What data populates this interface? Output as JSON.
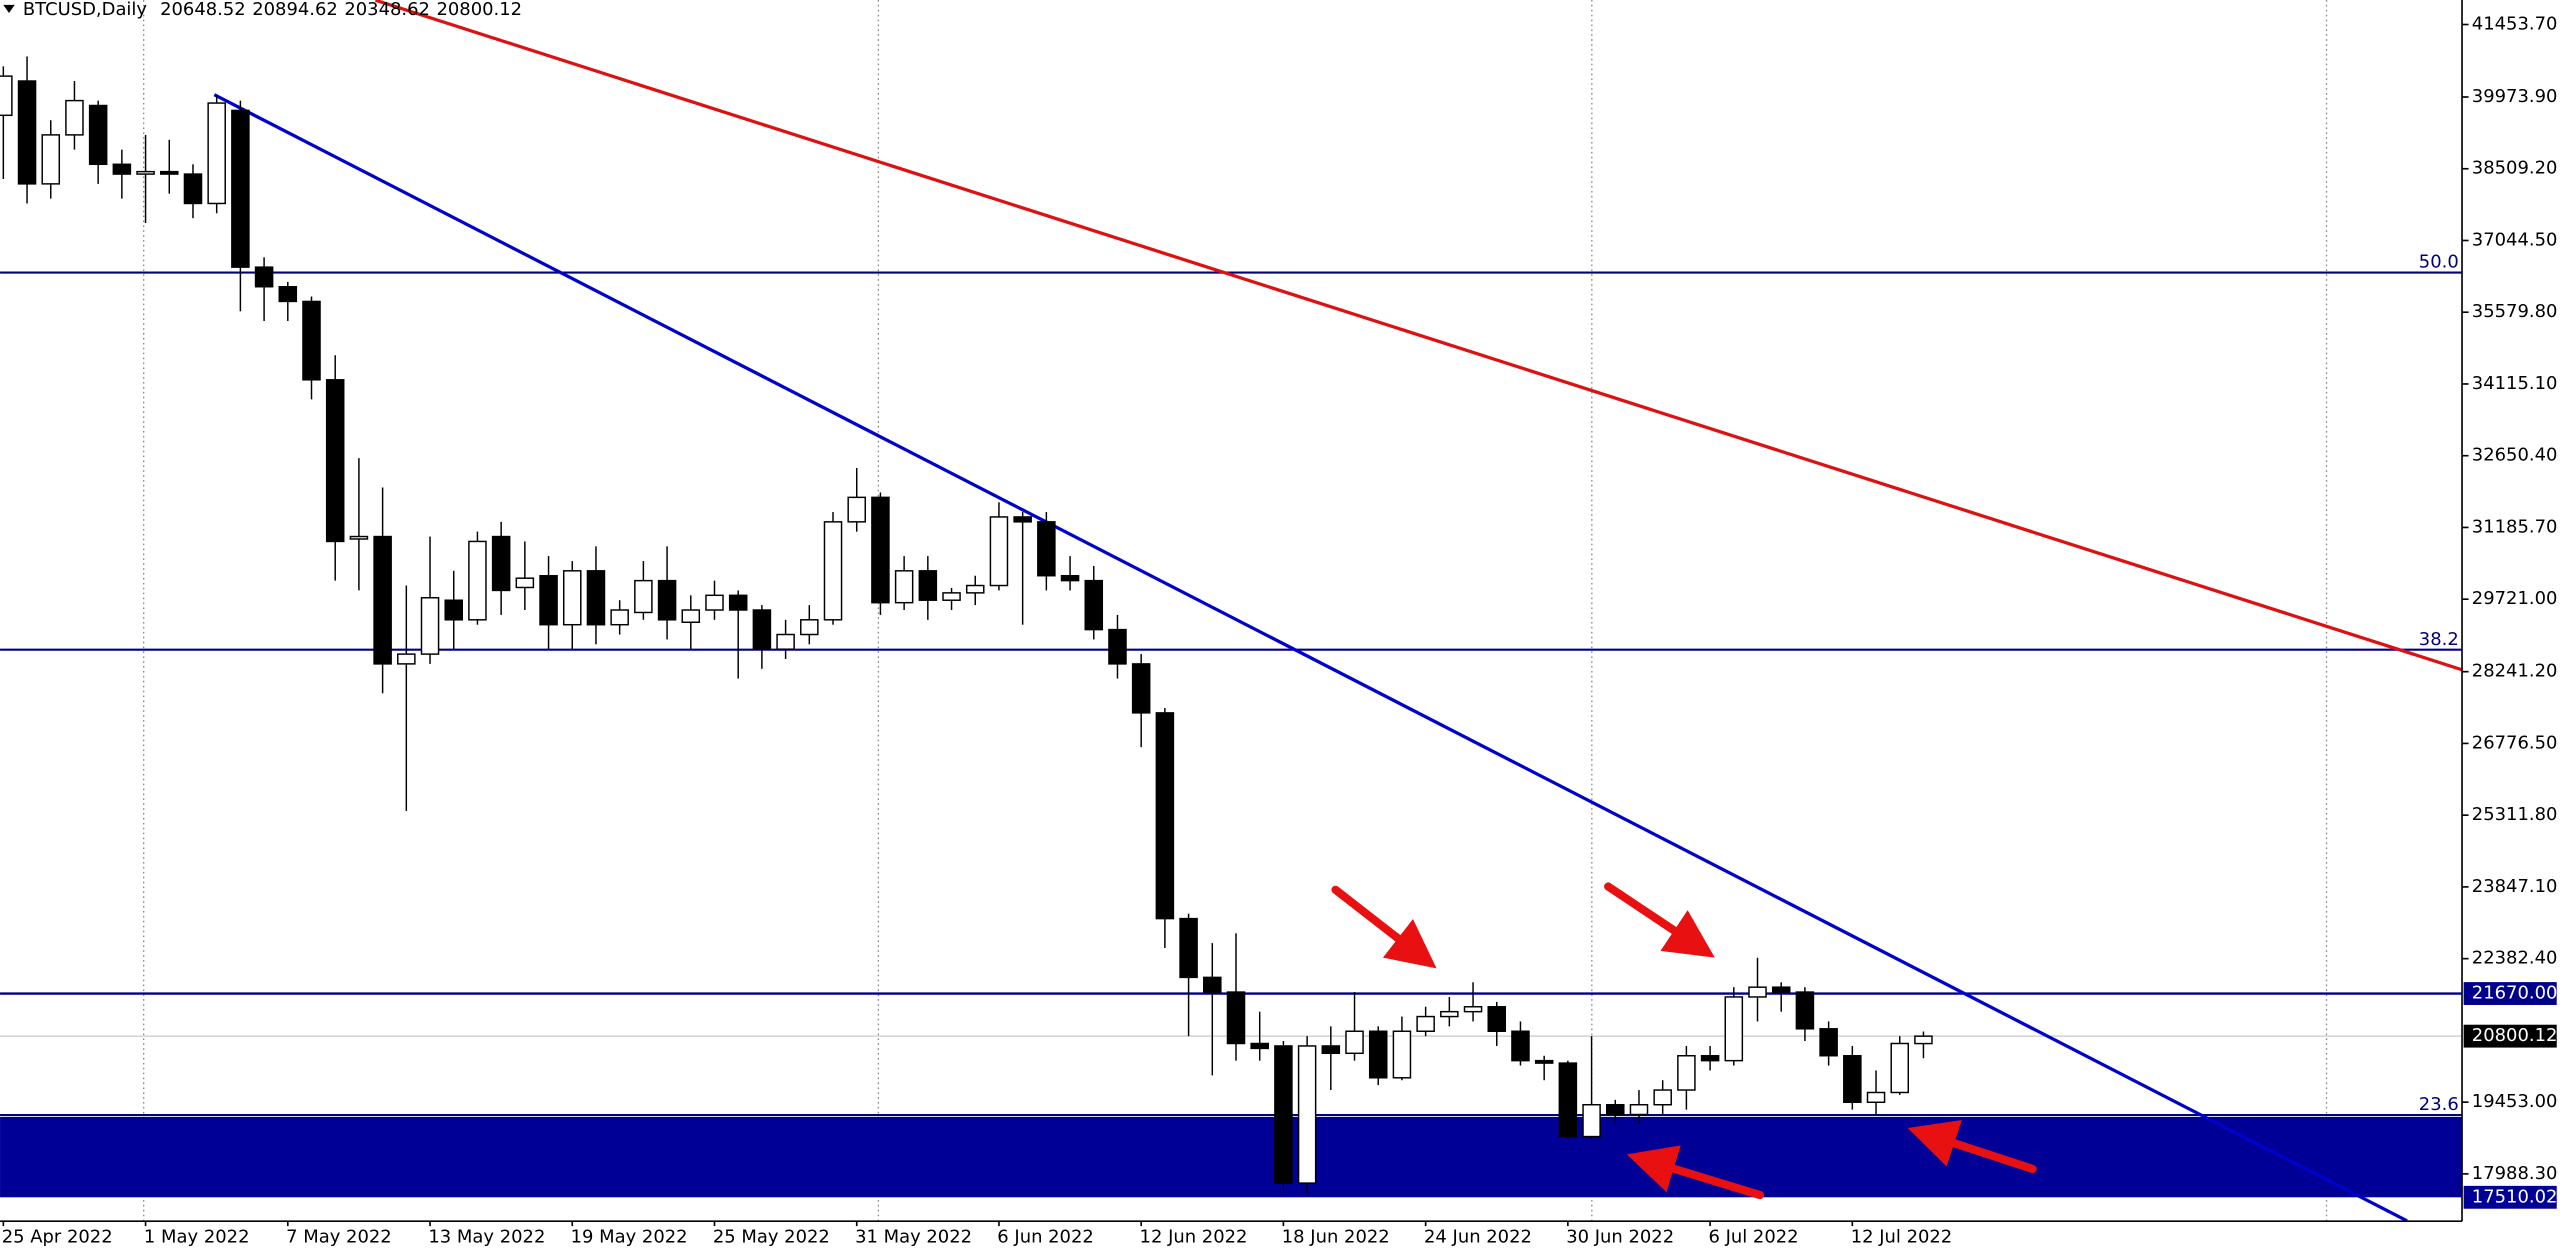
{
  "chart_data": {
    "type": "candlestick",
    "title": "BTCUSD,Daily",
    "categories": [
      "25 Apr 2022",
      null,
      null,
      null,
      null,
      null,
      "1 May 2022",
      null,
      null,
      null,
      null,
      null,
      "7 May 2022",
      null,
      null,
      null,
      null,
      null,
      "13 May 2022",
      null,
      null,
      null,
      null,
      null,
      "19 May 2022",
      null,
      null,
      null,
      null,
      null,
      "25 May 2022",
      null,
      null,
      null,
      null,
      null,
      "31 May 2022",
      null,
      null,
      null,
      null,
      null,
      "6 Jun 2022",
      null,
      null,
      null,
      null,
      null,
      "12 Jun 2022",
      null,
      null,
      null,
      null,
      null,
      "18 Jun 2022",
      null,
      null,
      null,
      null,
      null,
      "24 Jun 2022",
      null,
      null,
      null,
      null,
      null,
      "30 Jun 2022",
      null,
      null,
      null,
      null,
      null,
      "6 Jul 2022",
      null,
      null,
      null,
      null,
      null,
      "12 Jul 2022",
      null,
      null,
      null
    ],
    "open": [
      39600,
      40300,
      38200,
      39200,
      39800,
      38600,
      38400,
      38450,
      38400,
      37800,
      39700,
      36500,
      36100,
      35800,
      34200,
      30950,
      31000,
      28400,
      28600,
      29700,
      29300,
      31000,
      29960,
      30200,
      29200,
      30300,
      29200,
      29450,
      30100,
      29250,
      29500,
      29800,
      29500,
      28700,
      29000,
      29300,
      31300,
      31800,
      29650,
      30300,
      29700,
      29850,
      30000,
      31400,
      31300,
      30200,
      30100,
      29100,
      28400,
      27400,
      23200,
      22000,
      21700,
      20650,
      20600,
      17800,
      20600,
      20450,
      20900,
      19950,
      20900,
      21200,
      21300,
      21400,
      20900,
      20300,
      20250,
      18750,
      19400,
      19200,
      19400,
      19700,
      20400,
      20300,
      21600,
      21800,
      21700,
      20950,
      20400,
      19450,
      19650,
      20648.52
    ],
    "high": [
      40600,
      40800,
      39500,
      40300,
      39900,
      38900,
      39200,
      39100,
      38600,
      40000,
      39900,
      36700,
      36200,
      35900,
      34700,
      32600,
      32000,
      30000,
      31000,
      30300,
      31100,
      31300,
      30900,
      30600,
      30500,
      30800,
      29700,
      30500,
      30800,
      29800,
      30100,
      29900,
      29600,
      29300,
      29600,
      31500,
      32400,
      31900,
      30600,
      30600,
      29950,
      30200,
      31700,
      31500,
      31500,
      30600,
      30400,
      29400,
      28600,
      27500,
      23300,
      22700,
      22900,
      21300,
      20700,
      20800,
      21000,
      21700,
      21000,
      21200,
      21400,
      21600,
      21900,
      21500,
      21100,
      20400,
      20300,
      20800,
      19500,
      19700,
      19900,
      20600,
      20600,
      21800,
      22400,
      21900,
      21800,
      21100,
      20600,
      20100,
      20800,
      20894.62
    ],
    "low": [
      38300,
      37800,
      37900,
      38900,
      38200,
      37900,
      37400,
      38000,
      37500,
      37600,
      35600,
      35400,
      35400,
      33800,
      30100,
      29900,
      27800,
      25400,
      28400,
      28700,
      29200,
      29400,
      29500,
      28700,
      28700,
      28800,
      29000,
      29300,
      28900,
      28700,
      29300,
      28100,
      28300,
      28500,
      28800,
      29200,
      31100,
      29400,
      29500,
      29300,
      29500,
      29600,
      29900,
      29200,
      29900,
      29900,
      28900,
      28100,
      26700,
      22600,
      20800,
      20000,
      20300,
      20300,
      17650,
      17600,
      19700,
      20300,
      19800,
      19900,
      20800,
      21000,
      21100,
      20600,
      20200,
      19900,
      18700,
      18700,
      19000,
      19000,
      19200,
      19300,
      20100,
      20200,
      21100,
      21300,
      20700,
      20200,
      19300,
      19200,
      19600,
      20348.62
    ],
    "close": [
      40400,
      38200,
      39200,
      39900,
      38600,
      38400,
      38450,
      38400,
      37800,
      39850,
      36500,
      36100,
      35800,
      34200,
      30900,
      31000,
      28400,
      28600,
      29750,
      29300,
      30900,
      29900,
      30150,
      29200,
      30300,
      29200,
      29500,
      30100,
      29300,
      29500,
      29800,
      29500,
      28700,
      29000,
      29300,
      31300,
      31800,
      29650,
      30300,
      29700,
      29850,
      30000,
      31400,
      31300,
      30200,
      30100,
      29100,
      28400,
      27400,
      23200,
      22000,
      21700,
      20650,
      20550,
      17800,
      20600,
      20450,
      20900,
      19950,
      20900,
      21200,
      21300,
      21400,
      20900,
      20300,
      20250,
      18750,
      19400,
      19200,
      19400,
      19700,
      20400,
      20300,
      21600,
      21800,
      21700,
      20950,
      20400,
      19450,
      19650,
      20650,
      20800.12
    ],
    "up_color": "#ffffff",
    "down_color": "#000000",
    "xlim": [
      -0.14,
      103.72
    ],
    "ylim": [
      17022,
      41954
    ],
    "yticks": [
      {
        "value": 41453.7,
        "label": "41453.70"
      },
      {
        "value": 39973.9,
        "label": "39973.90"
      },
      {
        "value": 38509.2,
        "label": "38509.20"
      },
      {
        "value": 37044.5,
        "label": "37044.50"
      },
      {
        "value": 35579.8,
        "label": "35579.80"
      },
      {
        "value": 34115.1,
        "label": "34115.10"
      },
      {
        "value": 32650.4,
        "label": "32650.40"
      },
      {
        "value": 31185.7,
        "label": "31185.70"
      },
      {
        "value": 29721,
        "label": "29721.00"
      },
      {
        "value": 28241.2,
        "label": "28241.20"
      },
      {
        "value": 26776.5,
        "label": "26776.50"
      },
      {
        "value": 25311.8,
        "label": "25311.80"
      },
      {
        "value": 23847.1,
        "label": "23847.10"
      },
      {
        "value": 22382.4,
        "label": "22382.40"
      },
      {
        "value": 19453,
        "label": "19453.00"
      },
      {
        "value": 17988.3,
        "label": "17988.30"
      }
    ],
    "fib_levels": [
      {
        "label": "50.0",
        "value": 36390
      },
      {
        "label": "38.2",
        "value": 28690
      },
      {
        "label": "23.6",
        "value": 19190
      }
    ],
    "fib_color": "#000080",
    "level": {
      "value": 21670,
      "label": "21670.00",
      "color": "#00008b"
    },
    "zone": {
      "high": 19150,
      "low": {
        "value": 17510.02,
        "label": "17510.02"
      },
      "color": "#000096"
    },
    "last_price_color": "#c8c8c8",
    "trendlines": [
      {
        "color": "#0000cc",
        "start": [
          8.9,
          40020
        ],
        "end": [
          101.4,
          17030
        ]
      },
      {
        "color": "#dd1111",
        "start": [
          15.7,
          41950
        ],
        "end": [
          107.9,
          27630
        ]
      }
    ]
  }
}
